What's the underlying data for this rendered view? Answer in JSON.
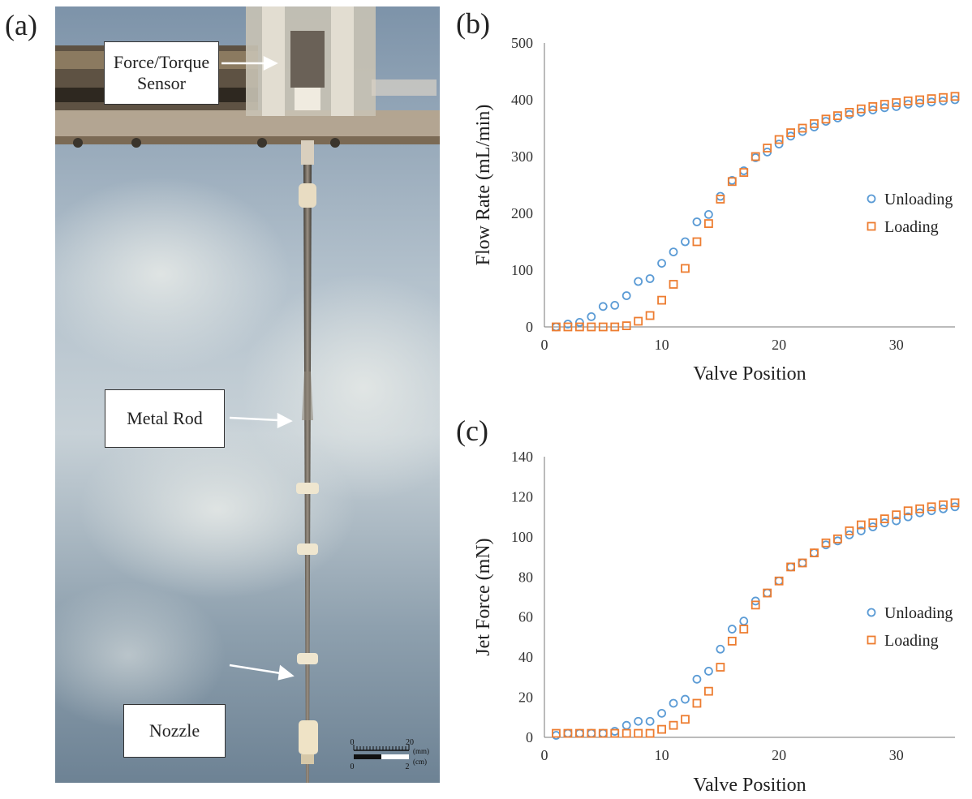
{
  "panels": {
    "a": "(a)",
    "b": "(b)",
    "c": "(c)"
  },
  "photo": {
    "callouts": {
      "sensor": "Force/Torque Sensor",
      "rod": "Metal Rod",
      "nozzle": "Nozzle"
    },
    "scalebar": {
      "top_start": "0",
      "top_end": "20",
      "top_unit": "(mm)",
      "bottom_start": "0",
      "bottom_end": "2",
      "bottom_unit": "(cm)"
    }
  },
  "colors": {
    "unloading": "#5b9bd5",
    "loading": "#ed7d31"
  },
  "chart_data": [
    {
      "type": "scatter",
      "xlabel": "Valve Position",
      "ylabel": "Flow Rate (mL/min)",
      "xlim": [
        0,
        35
      ],
      "ylim": [
        0,
        500
      ],
      "xticks": [
        0,
        10,
        20,
        30
      ],
      "yticks": [
        0,
        100,
        200,
        300,
        400,
        500
      ],
      "legend_position": "right",
      "series": [
        {
          "name": "Unloading",
          "marker": "circle",
          "x": [
            1,
            2,
            3,
            4,
            5,
            6,
            7,
            8,
            9,
            10,
            11,
            12,
            13,
            14,
            15,
            16,
            17,
            18,
            19,
            20,
            21,
            22,
            23,
            24,
            25,
            26,
            27,
            28,
            29,
            30,
            31,
            32,
            33,
            34,
            35
          ],
          "y": [
            0,
            5,
            8,
            18,
            36,
            38,
            55,
            80,
            85,
            112,
            132,
            150,
            185,
            198,
            230,
            258,
            275,
            298,
            308,
            322,
            336,
            344,
            352,
            362,
            368,
            374,
            378,
            382,
            386,
            388,
            392,
            394,
            396,
            398,
            400
          ]
        },
        {
          "name": "Loading",
          "marker": "square",
          "x": [
            1,
            2,
            3,
            4,
            5,
            6,
            7,
            8,
            9,
            10,
            11,
            12,
            13,
            14,
            15,
            16,
            17,
            18,
            19,
            20,
            21,
            22,
            23,
            24,
            25,
            26,
            27,
            28,
            29,
            30,
            31,
            32,
            33,
            34,
            35
          ],
          "y": [
            0,
            0,
            0,
            0,
            0,
            0,
            2,
            10,
            20,
            47,
            75,
            103,
            150,
            182,
            225,
            256,
            272,
            300,
            315,
            330,
            342,
            350,
            358,
            366,
            372,
            378,
            384,
            388,
            392,
            395,
            398,
            400,
            402,
            404,
            406
          ]
        }
      ]
    },
    {
      "type": "scatter",
      "xlabel": "Valve Position",
      "ylabel": "Jet Force (mN)",
      "xlim": [
        0,
        35
      ],
      "ylim": [
        0,
        140
      ],
      "xticks": [
        0,
        10,
        20,
        30
      ],
      "yticks": [
        0,
        20,
        40,
        60,
        80,
        100,
        120,
        140
      ],
      "legend_position": "right",
      "series": [
        {
          "name": "Unloading",
          "marker": "circle",
          "x": [
            1,
            2,
            3,
            4,
            5,
            6,
            7,
            8,
            9,
            10,
            11,
            12,
            13,
            14,
            15,
            16,
            17,
            18,
            19,
            20,
            21,
            22,
            23,
            24,
            25,
            26,
            27,
            28,
            29,
            30,
            31,
            32,
            33,
            34,
            35
          ],
          "y": [
            1,
            2,
            2,
            2,
            2,
            3,
            6,
            8,
            8,
            12,
            17,
            19,
            29,
            33,
            44,
            54,
            58,
            68,
            72,
            78,
            85,
            87,
            92,
            96,
            98,
            101,
            103,
            105,
            107,
            108,
            110,
            112,
            113,
            114,
            115
          ]
        },
        {
          "name": "Loading",
          "marker": "square",
          "x": [
            1,
            2,
            3,
            4,
            5,
            6,
            7,
            8,
            9,
            10,
            11,
            12,
            13,
            14,
            15,
            16,
            17,
            18,
            19,
            20,
            21,
            22,
            23,
            24,
            25,
            26,
            27,
            28,
            29,
            30,
            31,
            32,
            33,
            34,
            35
          ],
          "y": [
            2,
            2,
            2,
            2,
            2,
            2,
            2,
            2,
            2,
            4,
            6,
            9,
            17,
            23,
            35,
            48,
            54,
            66,
            72,
            78,
            85,
            87,
            92,
            97,
            99,
            103,
            106,
            107,
            109,
            111,
            113,
            114,
            115,
            116,
            117
          ]
        }
      ]
    }
  ]
}
